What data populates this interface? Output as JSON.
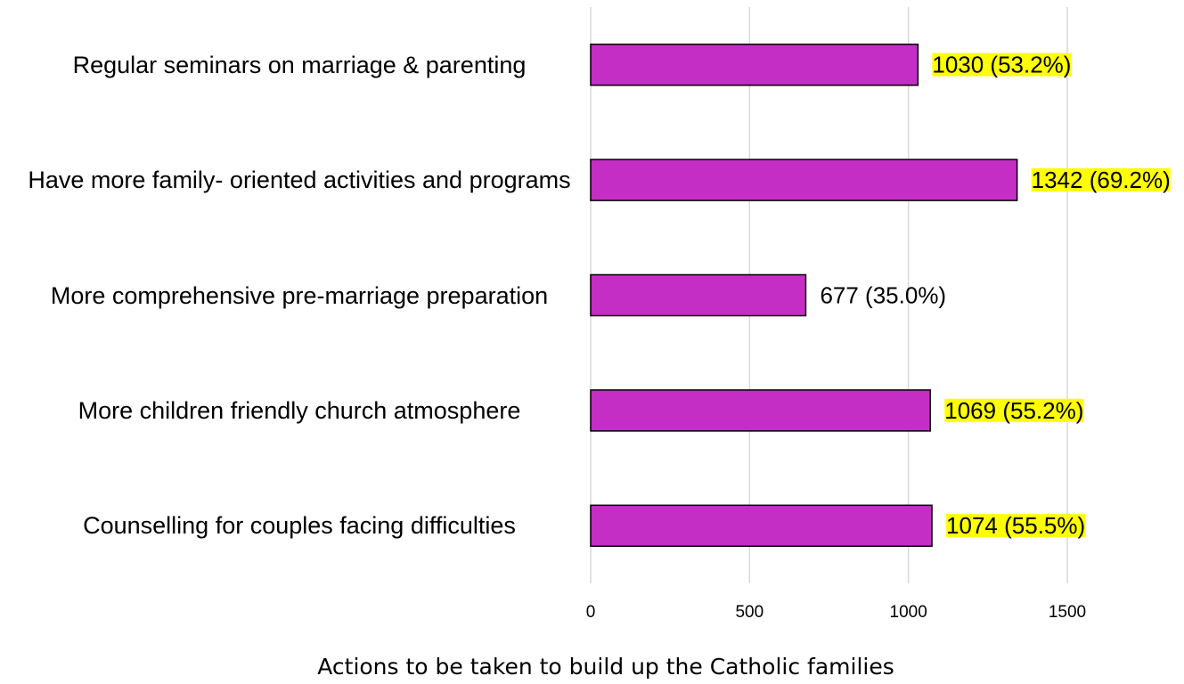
{
  "chart_data": {
    "type": "bar",
    "orientation": "horizontal",
    "categories": [
      "Regular seminars on marriage & parenting",
      "Have more family- oriented activities and programs",
      "More comprehensive pre-marriage preparation",
      "More children friendly church atmosphere",
      "Counselling for couples facing difficulties"
    ],
    "values": [
      1030,
      1342,
      677,
      1069,
      1074
    ],
    "value_labels": [
      "1030 (53.2%)",
      "1342 (69.2%)",
      "677 (35.0%)",
      "1069 (55.2%)",
      "1074 (55.5%)"
    ],
    "value_label_highlight": [
      "#ffff00",
      "#ffff00",
      null,
      "#ffff00",
      "#ffff00"
    ],
    "color": "#c42ec4",
    "xlabel": "Actions to be taken to build up the Catholic families",
    "xlim": [
      0,
      1500
    ],
    "xticks": [
      0,
      500,
      1000,
      1500
    ],
    "grid": true
  }
}
